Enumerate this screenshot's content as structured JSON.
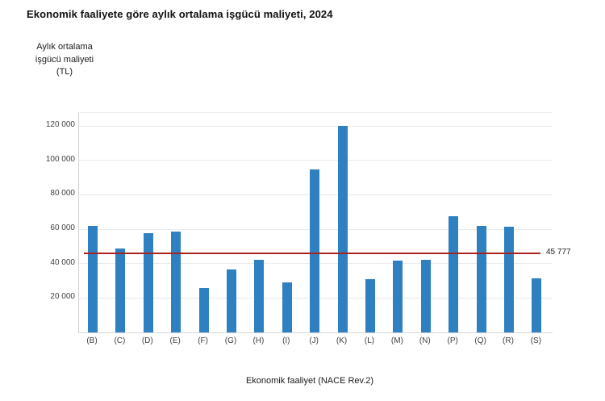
{
  "title": "Ekonomik faaliyete göre aylık ortalama işgücü maliyeti, 2024",
  "chart_data": {
    "type": "bar",
    "title": "Ekonomik faaliyete göre aylık ortalama işgücü maliyeti, 2024",
    "categories": [
      "(B)",
      "(C)",
      "(D)",
      "(E)",
      "(F)",
      "(G)",
      "(H)",
      "(I)",
      "(J)",
      "(K)",
      "(L)",
      "(M)",
      "(N)",
      "(P)",
      "(Q)",
      "(R)",
      "(S)"
    ],
    "values": [
      61900,
      48600,
      57700,
      58800,
      26000,
      36500,
      42400,
      29300,
      94500,
      120000,
      31000,
      41800,
      42000,
      67400,
      62100,
      61600,
      31400
    ],
    "xlabel": "Ekonomik faaliyet (NACE Rev.2)",
    "ylabel": "Aylık ortalama\nişgücü maliyeti\n(TL)",
    "ylim": [
      0,
      127500
    ],
    "yticks": [
      20000,
      40000,
      60000,
      80000,
      100000,
      120000
    ],
    "ytick_labels": [
      "20 000",
      "40 000",
      "60 000",
      "80 000",
      "100 000",
      "120 000"
    ],
    "grid": true,
    "legend": "none",
    "reference_line": {
      "value": 45777,
      "label": "45 777"
    },
    "colors": {
      "bar": "#2e80c0",
      "mean_line": "#a8221e",
      "grid": "#e9e9f0",
      "axis": "#d2d2da",
      "tick_text": "#404040",
      "title_text": "#111111"
    }
  }
}
